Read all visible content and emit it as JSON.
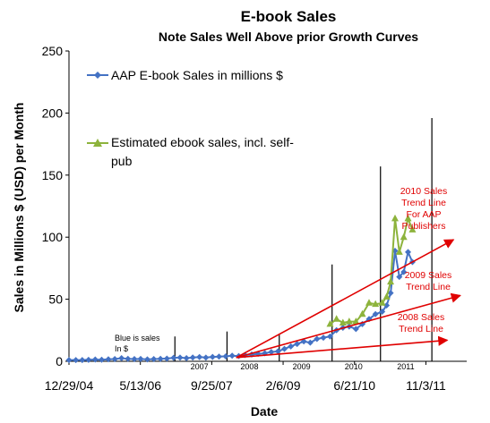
{
  "chart_data": {
    "type": "line",
    "title": "E-book Sales",
    "subtitle": "Note Sales Well Above prior Growth Curves",
    "ylabel": "Sales in Millions $ (USD) per Month",
    "xlabel": "Date",
    "ylim": [
      0,
      250
    ],
    "yticks": [
      0,
      50,
      100,
      150,
      200,
      250
    ],
    "xticks": [
      "12/29/04",
      "5/13/06",
      "9/25/07",
      "2/6/09",
      "6/21/10",
      "11/3/11"
    ],
    "xlim": [
      "2004-12-29",
      "2012-08-15"
    ],
    "grid": false,
    "legend_position": "top-left",
    "year_labels": [
      {
        "label": "2007",
        "x": "2007-07-01"
      },
      {
        "label": "2008",
        "x": "2008-06-15"
      },
      {
        "label": "2009",
        "x": "2009-06-15"
      },
      {
        "label": "2010",
        "x": "2010-06-15"
      },
      {
        "label": "2011",
        "x": "2011-06-15"
      }
    ],
    "year_dividers": [
      {
        "x": "2007-01-10",
        "ymax": 20
      },
      {
        "x": "2008-01-10",
        "ymax": 24
      },
      {
        "x": "2009-01-10",
        "ymax": 22
      },
      {
        "x": "2010-01-15",
        "ymax": 78
      },
      {
        "x": "2010-12-20",
        "ymax": 157
      },
      {
        "x": "2011-12-15",
        "ymax": 196
      }
    ],
    "series": [
      {
        "name": "AAP E-book Sales in millions $",
        "color": "#4472c4",
        "marker": "diamond",
        "x": [
          "2004-12-29",
          "2005-02-15",
          "2005-04-01",
          "2005-05-15",
          "2005-07-01",
          "2005-08-15",
          "2005-10-01",
          "2005-11-15",
          "2006-01-01",
          "2006-02-15",
          "2006-04-01",
          "2006-05-15",
          "2006-07-01",
          "2006-08-15",
          "2006-10-01",
          "2006-11-15",
          "2007-01-01",
          "2007-02-15",
          "2007-04-01",
          "2007-05-15",
          "2007-07-01",
          "2007-08-15",
          "2007-10-01",
          "2007-11-15",
          "2008-01-01",
          "2008-02-15",
          "2008-04-01",
          "2008-05-15",
          "2008-07-01",
          "2008-08-15",
          "2008-10-01",
          "2008-11-15",
          "2009-01-01",
          "2009-02-15",
          "2009-04-01",
          "2009-05-15",
          "2009-07-01",
          "2009-08-15",
          "2009-10-01",
          "2009-11-15",
          "2010-01-01",
          "2010-02-15",
          "2010-04-01",
          "2010-05-15",
          "2010-07-01",
          "2010-08-15",
          "2010-10-01",
          "2010-11-15",
          "2011-01-01",
          "2011-02-01",
          "2011-03-01",
          "2011-04-01",
          "2011-05-01",
          "2011-06-01",
          "2011-07-01",
          "2011-08-01"
        ],
        "values": [
          1,
          1,
          1,
          1.2,
          1.4,
          1.3,
          1.6,
          1.8,
          2.5,
          2,
          1.8,
          1.9,
          1.5,
          1.8,
          2,
          2.2,
          2.8,
          3,
          2.5,
          3.1,
          3.4,
          3,
          3.5,
          3.8,
          4,
          4.5,
          4.2,
          5,
          5.5,
          6,
          6.5,
          7.5,
          8,
          10,
          12,
          14,
          16,
          15,
          18,
          19,
          20,
          25,
          27,
          28,
          26,
          30,
          34,
          38,
          40,
          45,
          55,
          89,
          68,
          72,
          88,
          80
        ]
      },
      {
        "name": "Estimated ebook sales, incl. self-pub",
        "color": "#8db33c",
        "marker": "triangle",
        "x": [
          "2010-01-01",
          "2010-02-15",
          "2010-04-01",
          "2010-05-15",
          "2010-07-01",
          "2010-08-15",
          "2010-10-01",
          "2010-11-15",
          "2011-01-01",
          "2011-02-01",
          "2011-03-01",
          "2011-04-01",
          "2011-05-01",
          "2011-06-01",
          "2011-07-01",
          "2011-08-01"
        ],
        "values": [
          30,
          34,
          31,
          32,
          32,
          38,
          47,
          46,
          47,
          52,
          64,
          115,
          88,
          100,
          115,
          106
        ]
      }
    ],
    "trend_lines": [
      {
        "label_lines": [
          "2010 Sales",
          "Trend Line",
          "For AAP",
          "Publishers"
        ],
        "x": [
          "2008-03-15",
          "2012-05-15"
        ],
        "y": [
          3,
          98
        ]
      },
      {
        "label_lines": [
          "2009 Sales",
          "Trend Line"
        ],
        "x": [
          "2008-03-15",
          "2012-07-01"
        ],
        "y": [
          3,
          53
        ]
      },
      {
        "label_lines": [
          "2008 Sales",
          "Trend Line"
        ],
        "x": [
          "2008-03-15",
          "2012-04-01"
        ],
        "y": [
          3,
          17
        ]
      }
    ],
    "annotation": [
      "Blue is sales",
      "In $"
    ]
  }
}
